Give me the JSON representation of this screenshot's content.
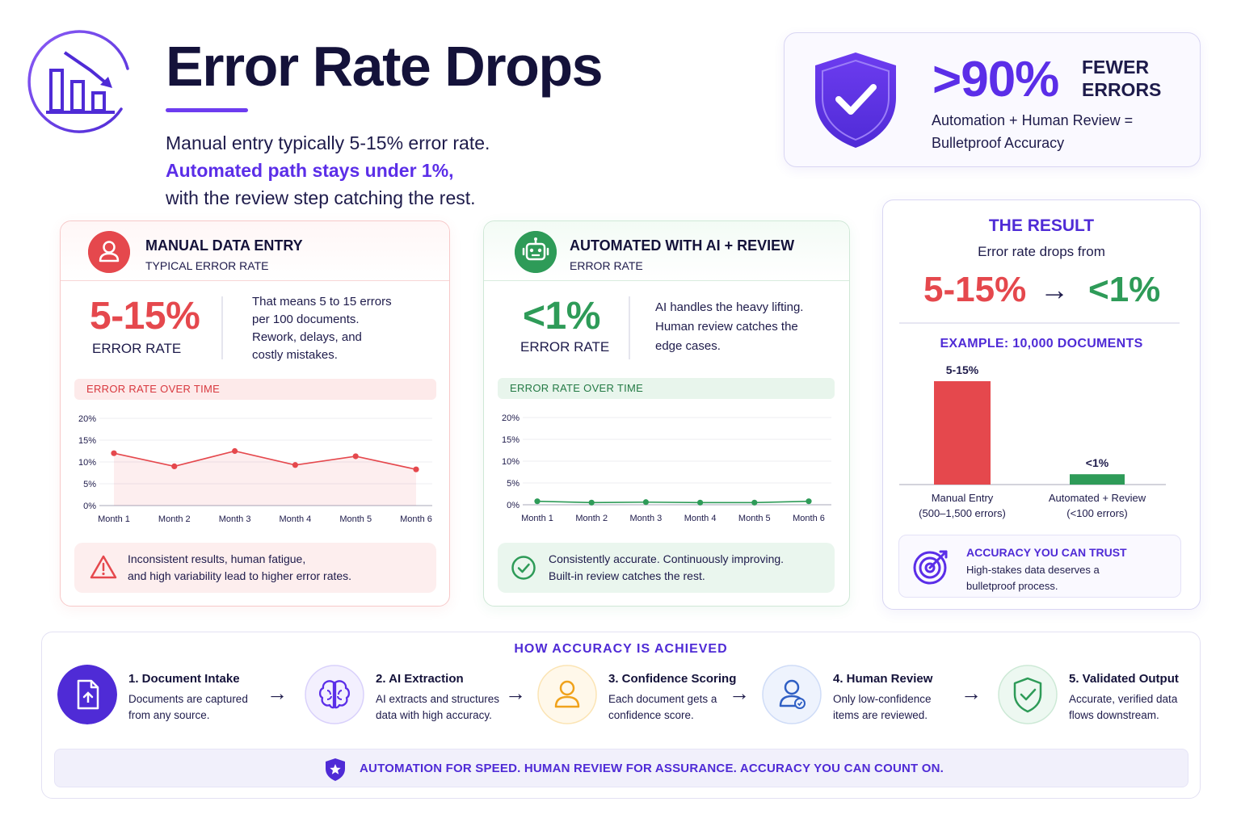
{
  "header": {
    "title": "Error Rate Drops",
    "intro_line1": "Manual entry typically 5-15% error rate.",
    "intro_line2": "Automated path stays under 1%,",
    "intro_line3": "with the review step catching the rest."
  },
  "banner": {
    "big": ">90%",
    "fewer_line1": "FEWER",
    "fewer_line2": "ERRORS",
    "sub_line1": "Automation + Human Review =",
    "sub_line2": "Bulletproof Accuracy"
  },
  "manual": {
    "title": "MANUAL DATA ENTRY",
    "subtitle": "TYPICAL ERROR RATE",
    "stat": "5-15%",
    "stat_label": "ERROR RATE",
    "desc_lines": [
      "That means 5 to 15 errors",
      "per 100 documents.",
      "Rework, delays, and",
      "costly mistakes."
    ],
    "chart_strip": "ERROR RATE OVER TIME",
    "callout_lines": [
      "Inconsistent results, human fatigue,",
      "and high variability lead to higher error rates."
    ]
  },
  "automated": {
    "title": "AUTOMATED WITH AI + REVIEW",
    "subtitle": "ERROR RATE",
    "stat": "<1%",
    "stat_label": "ERROR RATE",
    "desc_lines": [
      "AI handles the heavy lifting.",
      "Human review catches the",
      "edge cases."
    ],
    "chart_strip": "ERROR RATE OVER TIME",
    "callout_lines": [
      "Consistently accurate. Continuously improving.",
      "Built-in review catches the rest."
    ]
  },
  "result": {
    "title": "THE RESULT",
    "subtitle": "Error rate drops from",
    "from": "5-15%",
    "arrow": "→",
    "to": "<1%",
    "example": "EXAMPLE: 10,000 DOCUMENTS",
    "trust_title": "ACCURACY YOU CAN TRUST",
    "trust_line1": "High-stakes data deserves a",
    "trust_line2": "bulletproof process."
  },
  "process": {
    "title": "HOW ACCURACY IS ACHIEVED",
    "steps": [
      {
        "title": "1. Document Intake",
        "line1": "Documents are captured",
        "line2": "from any source.",
        "icon": "document-upload-icon"
      },
      {
        "title": "2. AI Extraction",
        "line1": "AI extracts and structures",
        "line2": "data with high accuracy.",
        "icon": "brain-icon"
      },
      {
        "title": "3. Confidence Scoring",
        "line1": "Each document gets a",
        "line2": "confidence score.",
        "icon": "person-icon"
      },
      {
        "title": "4. Human Review",
        "line1": "Only low-confidence",
        "line2": "items are reviewed.",
        "icon": "reviewer-icon"
      },
      {
        "title": "5. Validated Output",
        "line1": "Accurate, verified data",
        "line2": "flows downstream.",
        "icon": "shield-check-icon"
      }
    ],
    "arrow": "→",
    "motto": "AUTOMATION FOR SPEED. HUMAN REVIEW FOR ASSURANCE. ACCURACY YOU CAN COUNT ON."
  },
  "colors": {
    "accent": "#5b2ee8",
    "manual": "#e5484d",
    "automated": "#2e9b58"
  },
  "chart_data": [
    {
      "type": "area",
      "categories": [
        "Month 1",
        "Month 2",
        "Month 3",
        "Month 4",
        "Month 5",
        "Month 6"
      ],
      "values": [
        12,
        9,
        12.5,
        9.3,
        11.3,
        8.3
      ],
      "ylim": [
        0,
        20
      ],
      "yticks": [
        "0%",
        "5%",
        "10%",
        "15%",
        "20%"
      ],
      "color": "#e5484d"
    },
    {
      "type": "line",
      "categories": [
        "Month 1",
        "Month 2",
        "Month 3",
        "Month 4",
        "Month 5",
        "Month 6"
      ],
      "values": [
        0.8,
        0.5,
        0.6,
        0.5,
        0.5,
        0.8
      ],
      "ylim": [
        0,
        20
      ],
      "yticks": [
        "0%",
        "5%",
        "10%",
        "15%",
        "20%"
      ],
      "color": "#2e9b58"
    },
    {
      "type": "bar",
      "categories": [
        "Manual Entry",
        "Automated + Review"
      ],
      "category_notes": [
        "(500–1,500 errors)",
        "(<100 errors)"
      ],
      "values": [
        10,
        1
      ],
      "data_labels": [
        "5-15%",
        "<1%"
      ],
      "colors": [
        "#e5484d",
        "#2e9b58"
      ]
    }
  ]
}
